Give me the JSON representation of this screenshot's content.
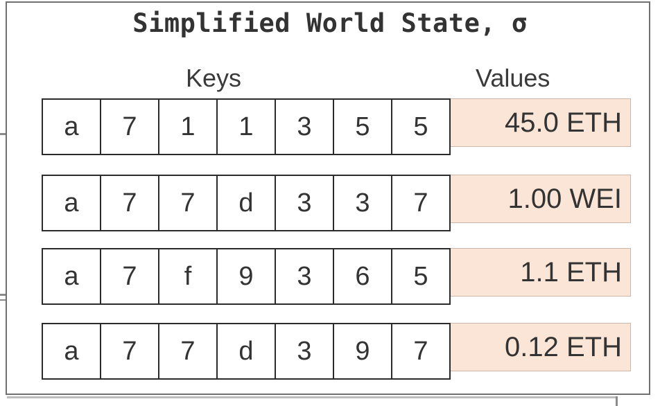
{
  "title": "Simplified World State, σ",
  "column_labels": {
    "keys": "Keys",
    "values": "Values"
  },
  "rows": [
    {
      "key": [
        "a",
        "7",
        "1",
        "1",
        "3",
        "5",
        "5"
      ],
      "value": "45.0 ETH"
    },
    {
      "key": [
        "a",
        "7",
        "7",
        "d",
        "3",
        "3",
        "7"
      ],
      "value": "1.00 WEI"
    },
    {
      "key": [
        "a",
        "7",
        "f",
        "9",
        "3",
        "6",
        "5"
      ],
      "value": "1.1 ETH"
    },
    {
      "key": [
        "a",
        "7",
        "7",
        "d",
        "3",
        "9",
        "7"
      ],
      "value": "0.12 ETH"
    }
  ],
  "colors": {
    "value_fill": "#fbe5d6",
    "border": "#2b2b2b",
    "text": "#333333"
  }
}
